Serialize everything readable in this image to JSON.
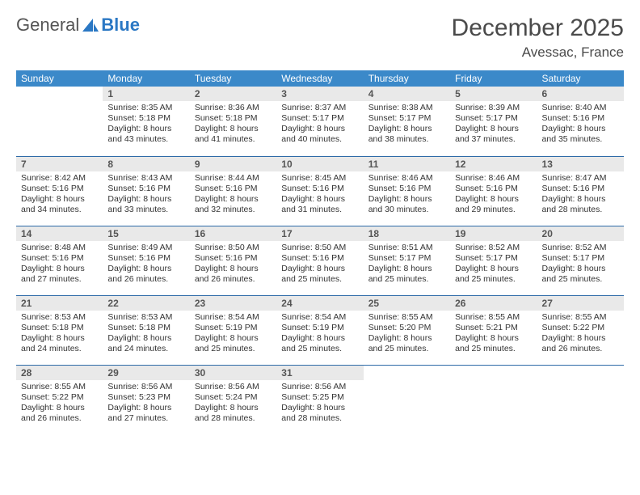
{
  "logo": {
    "text1": "General",
    "text2": "Blue"
  },
  "title": "December 2025",
  "subtitle": "Avessac, France",
  "headers": {
    "bg": "#3b89c9",
    "fg": "#ffffff"
  },
  "dow": [
    "Sunday",
    "Monday",
    "Tuesday",
    "Wednesday",
    "Thursday",
    "Friday",
    "Saturday"
  ],
  "daynum_bg": "#e9e9e9",
  "row_border": "#2e6ba8",
  "body_fontsize": 10.5,
  "weeks": [
    [
      null,
      {
        "n": "1",
        "sr": "8:35 AM",
        "ss": "5:18 PM",
        "dl": "8 hours and 43 minutes."
      },
      {
        "n": "2",
        "sr": "8:36 AM",
        "ss": "5:18 PM",
        "dl": "8 hours and 41 minutes."
      },
      {
        "n": "3",
        "sr": "8:37 AM",
        "ss": "5:17 PM",
        "dl": "8 hours and 40 minutes."
      },
      {
        "n": "4",
        "sr": "8:38 AM",
        "ss": "5:17 PM",
        "dl": "8 hours and 38 minutes."
      },
      {
        "n": "5",
        "sr": "8:39 AM",
        "ss": "5:17 PM",
        "dl": "8 hours and 37 minutes."
      },
      {
        "n": "6",
        "sr": "8:40 AM",
        "ss": "5:16 PM",
        "dl": "8 hours and 35 minutes."
      }
    ],
    [
      {
        "n": "7",
        "sr": "8:42 AM",
        "ss": "5:16 PM",
        "dl": "8 hours and 34 minutes."
      },
      {
        "n": "8",
        "sr": "8:43 AM",
        "ss": "5:16 PM",
        "dl": "8 hours and 33 minutes."
      },
      {
        "n": "9",
        "sr": "8:44 AM",
        "ss": "5:16 PM",
        "dl": "8 hours and 32 minutes."
      },
      {
        "n": "10",
        "sr": "8:45 AM",
        "ss": "5:16 PM",
        "dl": "8 hours and 31 minutes."
      },
      {
        "n": "11",
        "sr": "8:46 AM",
        "ss": "5:16 PM",
        "dl": "8 hours and 30 minutes."
      },
      {
        "n": "12",
        "sr": "8:46 AM",
        "ss": "5:16 PM",
        "dl": "8 hours and 29 minutes."
      },
      {
        "n": "13",
        "sr": "8:47 AM",
        "ss": "5:16 PM",
        "dl": "8 hours and 28 minutes."
      }
    ],
    [
      {
        "n": "14",
        "sr": "8:48 AM",
        "ss": "5:16 PM",
        "dl": "8 hours and 27 minutes."
      },
      {
        "n": "15",
        "sr": "8:49 AM",
        "ss": "5:16 PM",
        "dl": "8 hours and 26 minutes."
      },
      {
        "n": "16",
        "sr": "8:50 AM",
        "ss": "5:16 PM",
        "dl": "8 hours and 26 minutes."
      },
      {
        "n": "17",
        "sr": "8:50 AM",
        "ss": "5:16 PM",
        "dl": "8 hours and 25 minutes."
      },
      {
        "n": "18",
        "sr": "8:51 AM",
        "ss": "5:17 PM",
        "dl": "8 hours and 25 minutes."
      },
      {
        "n": "19",
        "sr": "8:52 AM",
        "ss": "5:17 PM",
        "dl": "8 hours and 25 minutes."
      },
      {
        "n": "20",
        "sr": "8:52 AM",
        "ss": "5:17 PM",
        "dl": "8 hours and 25 minutes."
      }
    ],
    [
      {
        "n": "21",
        "sr": "8:53 AM",
        "ss": "5:18 PM",
        "dl": "8 hours and 24 minutes."
      },
      {
        "n": "22",
        "sr": "8:53 AM",
        "ss": "5:18 PM",
        "dl": "8 hours and 24 minutes."
      },
      {
        "n": "23",
        "sr": "8:54 AM",
        "ss": "5:19 PM",
        "dl": "8 hours and 25 minutes."
      },
      {
        "n": "24",
        "sr": "8:54 AM",
        "ss": "5:19 PM",
        "dl": "8 hours and 25 minutes."
      },
      {
        "n": "25",
        "sr": "8:55 AM",
        "ss": "5:20 PM",
        "dl": "8 hours and 25 minutes."
      },
      {
        "n": "26",
        "sr": "8:55 AM",
        "ss": "5:21 PM",
        "dl": "8 hours and 25 minutes."
      },
      {
        "n": "27",
        "sr": "8:55 AM",
        "ss": "5:22 PM",
        "dl": "8 hours and 26 minutes."
      }
    ],
    [
      {
        "n": "28",
        "sr": "8:55 AM",
        "ss": "5:22 PM",
        "dl": "8 hours and 26 minutes."
      },
      {
        "n": "29",
        "sr": "8:56 AM",
        "ss": "5:23 PM",
        "dl": "8 hours and 27 minutes."
      },
      {
        "n": "30",
        "sr": "8:56 AM",
        "ss": "5:24 PM",
        "dl": "8 hours and 28 minutes."
      },
      {
        "n": "31",
        "sr": "8:56 AM",
        "ss": "5:25 PM",
        "dl": "8 hours and 28 minutes."
      },
      null,
      null,
      null
    ]
  ],
  "labels": {
    "sunrise": "Sunrise:",
    "sunset": "Sunset:",
    "daylight": "Daylight:"
  }
}
